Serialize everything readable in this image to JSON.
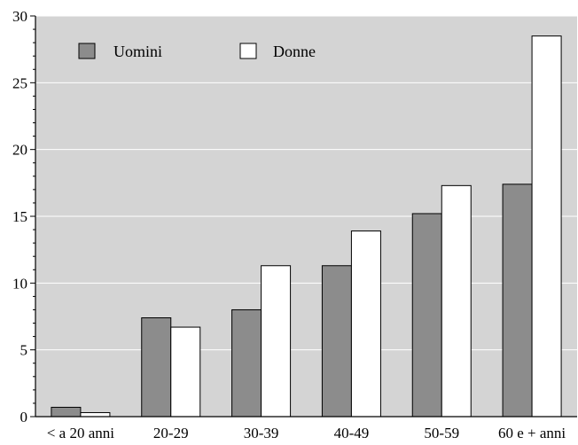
{
  "chart_data": {
    "type": "bar",
    "title": "",
    "xlabel": "",
    "ylabel": "",
    "categories": [
      "< a 20 anni",
      "20-29",
      "30-39",
      "40-49",
      "50-59",
      "60 e + anni"
    ],
    "series": [
      {
        "name": "Uomini",
        "values": [
          0.7,
          7.4,
          8.0,
          11.3,
          15.2,
          17.4
        ],
        "color": "#8c8c8c"
      },
      {
        "name": "Donne",
        "values": [
          0.3,
          6.7,
          11.3,
          13.9,
          17.3,
          28.5
        ],
        "color": "#ffffff"
      }
    ],
    "ylim": [
      0,
      30
    ],
    "yticks": [
      "0",
      "5",
      "10",
      "15",
      "20",
      "25",
      "30"
    ],
    "grid": true,
    "legend": "top-left",
    "plot_background": "#d4d4d4",
    "gridline_color": "#ffffff"
  }
}
